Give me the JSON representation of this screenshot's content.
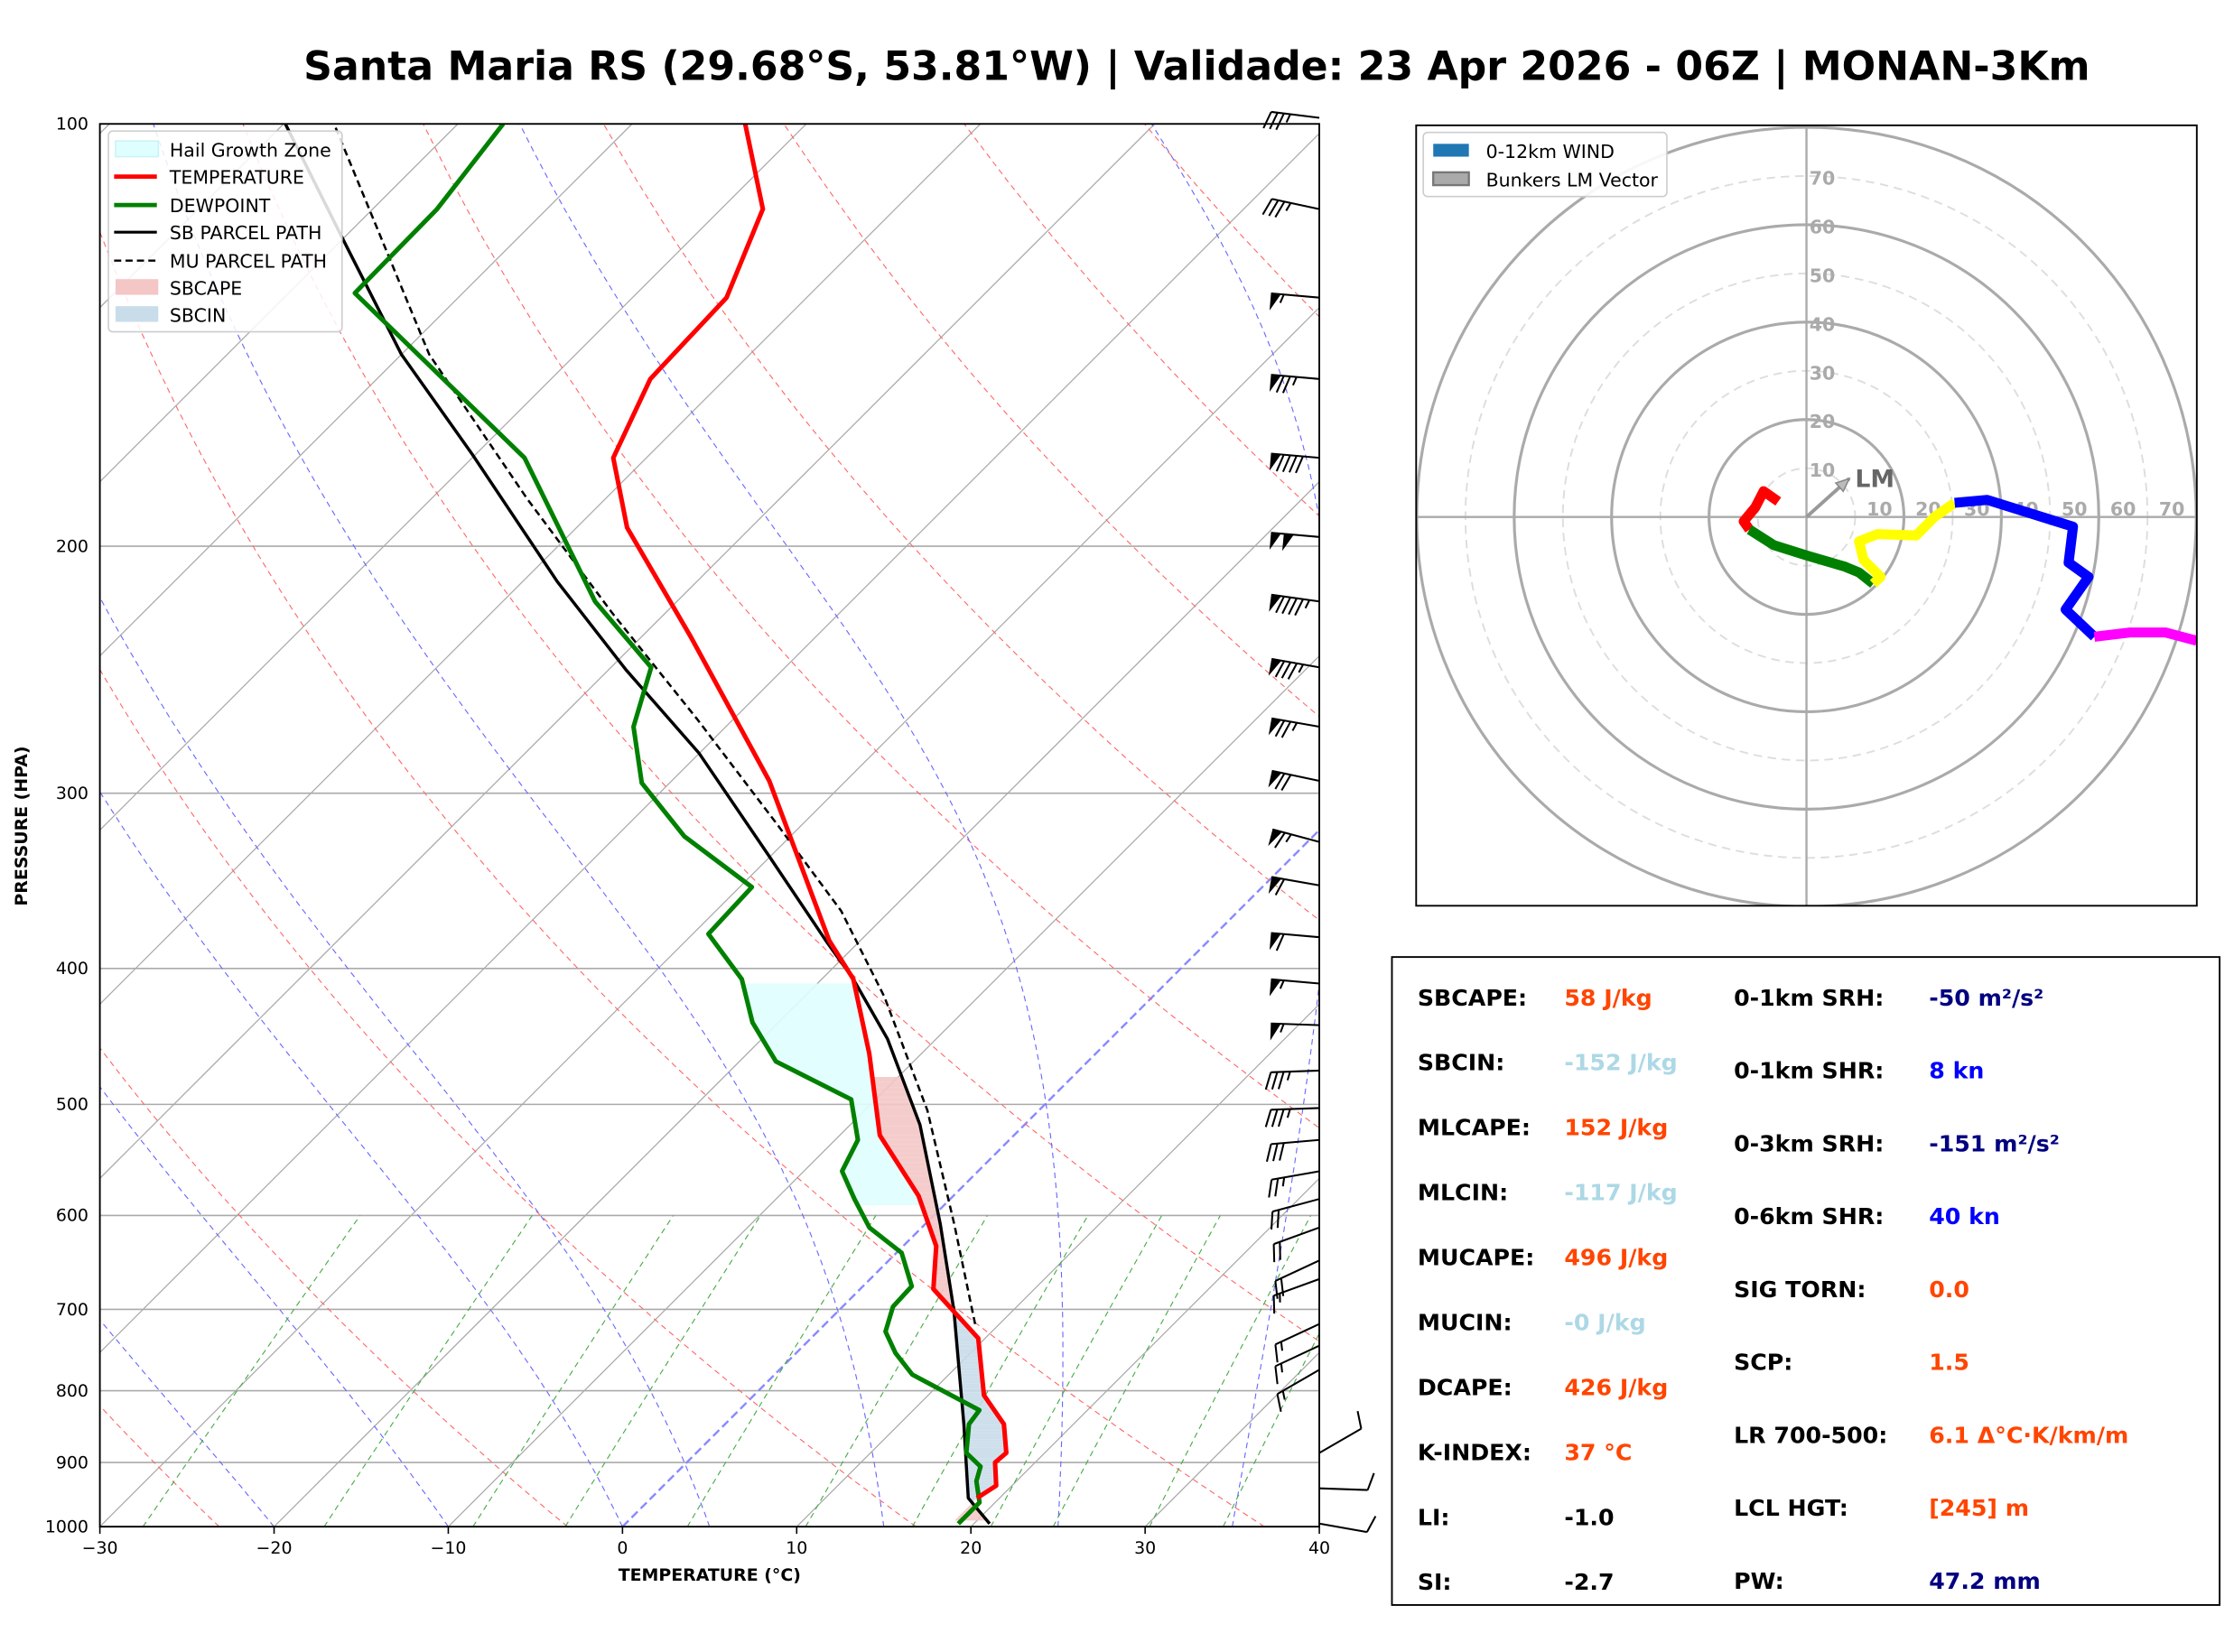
{
  "title": "Santa Maria RS (29.68°S, 53.81°W) | Validade: 23 Apr 2026 - 06Z | MONAN-3Km",
  "chart_data": [
    {
      "type": "line",
      "name": "skew-t",
      "xlabel": "TEMPERATURE (°C)",
      "ylabel": "PRESSURE (HPA)",
      "xlim": [
        -30,
        40
      ],
      "ylim": [
        1000,
        100
      ],
      "x_ticks": [
        "−30",
        "−20",
        "−10",
        "0",
        "10",
        "20",
        "30",
        "40"
      ],
      "x_tick_values": [
        -30,
        -20,
        -10,
        0,
        10,
        20,
        30,
        40
      ],
      "y_ticks": [
        "100",
        "200",
        "300",
        "400",
        "500",
        "600",
        "700",
        "800",
        "900",
        "1000"
      ],
      "y_tick_values": [
        100,
        200,
        300,
        400,
        500,
        600,
        700,
        800,
        900,
        1000
      ],
      "legend": {
        "placement": "top-left",
        "entries": [
          "Hail Growth Zone",
          "TEMPERATURE",
          "DEWPOINT",
          "SB PARCEL PATH",
          "MU PARCEL PATH",
          "SBCAPE",
          "SBCIN"
        ]
      },
      "colors": {
        "temperature": "#ff0000",
        "dewpoint": "#008000",
        "sb_parcel": "#000000",
        "mu_parcel": "#000000",
        "sbcape": "#f4c6c6",
        "sbcin": "#c9dcea",
        "hgz": "#dffeff"
      },
      "temperature": {
        "p": [
          954,
          935,
          900,
          886,
          845,
          806,
          734,
          677,
          631,
          581,
          526,
          460,
          407,
          382,
          294,
          269,
          232,
          194,
          173,
          152,
          133,
          115,
          100
        ],
        "T": [
          18.7,
          19.1,
          17.7,
          17.8,
          16.0,
          13.2,
          9.6,
          4.2,
          1.9,
          -2.0,
          -7.7,
          -13.0,
          -18.2,
          -21.8,
          -34.4,
          -39.2,
          -47.2,
          -57.1,
          -61.9,
          -64.3,
          -64.6,
          -67.6,
          -73.5
        ]
      },
      "dewpoint": {
        "p": [
          995,
          961,
          928,
          906,
          886,
          845,
          826,
          779,
          752,
          726,
          697,
          674,
          638,
          612,
          584,
          558,
          530,
          496,
          466,
          437,
          407,
          378,
          350,
          322,
          295,
          269,
          244,
          219,
          173,
          132,
          115,
          100
        ],
        "T": [
          19.1,
          19.1,
          17.7,
          17.1,
          15.5,
          14.0,
          13.8,
          7.9,
          5.7,
          3.9,
          2.9,
          2.8,
          0.3,
          -3.0,
          -5.5,
          -7.8,
          -8.7,
          -11.4,
          -17.9,
          -21.5,
          -24.6,
          -29.1,
          -29.3,
          -36.1,
          -41.6,
          -45.3,
          -47.7,
          -54.7,
          -67.0,
          -86.2,
          -86.3,
          -87.4
        ]
      },
      "sb_parcel": {
        "p": [
          995,
          954,
          845,
          701,
          609,
          517,
          449,
          407,
          382,
          332,
          281,
          245,
          212,
          172,
          146,
          121,
          100
        ],
        "T": [
          20.9,
          18.2,
          13.7,
          6.6,
          0.9,
          -6.0,
          -12.8,
          -18.2,
          -22.0,
          -30.2,
          -40.0,
          -49.0,
          -58.0,
          -70.2,
          -80.0,
          -89.9,
          -99.9
        ]
      },
      "mu_parcel": {
        "p": [
          717,
          609,
          505,
          419,
          364,
          316,
          266,
          223,
          185,
          146,
          100
        ],
        "T": [
          8.6,
          1.7,
          -6.4,
          -15.4,
          -22.8,
          -31.4,
          -42.0,
          -53.1,
          -64.5,
          -78.4,
          -97.1
        ]
      },
      "hail_growth_zone_hpa": [
        590,
        410
      ],
      "wind_barbs": [
        {
          "p": 99,
          "dir": 277,
          "kt": 35
        },
        {
          "p": 115,
          "dir": 282,
          "kt": 35
        },
        {
          "p": 133,
          "dir": 275,
          "kt": 55
        },
        {
          "p": 152,
          "dir": 275,
          "kt": 75
        },
        {
          "p": 173,
          "dir": 275,
          "kt": 90
        },
        {
          "p": 197,
          "dir": 275,
          "kt": 100
        },
        {
          "p": 219,
          "dir": 278,
          "kt": 95
        },
        {
          "p": 244,
          "dir": 280,
          "kt": 85
        },
        {
          "p": 269,
          "dir": 280,
          "kt": 75
        },
        {
          "p": 294,
          "dir": 282,
          "kt": 70
        },
        {
          "p": 325,
          "dir": 285,
          "kt": 65
        },
        {
          "p": 349,
          "dir": 280,
          "kt": 60
        },
        {
          "p": 380,
          "dir": 275,
          "kt": 60
        },
        {
          "p": 410,
          "dir": 275,
          "kt": 55
        },
        {
          "p": 439,
          "dir": 272,
          "kt": 55
        },
        {
          "p": 473,
          "dir": 268,
          "kt": 35
        },
        {
          "p": 503,
          "dir": 268,
          "kt": 35
        },
        {
          "p": 530,
          "dir": 265,
          "kt": 30
        },
        {
          "p": 558,
          "dir": 260,
          "kt": 25
        },
        {
          "p": 584,
          "dir": 255,
          "kt": 20
        },
        {
          "p": 612,
          "dir": 250,
          "kt": 20
        },
        {
          "p": 646,
          "dir": 245,
          "kt": 20
        },
        {
          "p": 666,
          "dir": 250,
          "kt": 15
        },
        {
          "p": 717,
          "dir": 245,
          "kt": 15
        },
        {
          "p": 743,
          "dir": 245,
          "kt": 15
        },
        {
          "p": 773,
          "dir": 240,
          "kt": 15
        },
        {
          "p": 886,
          "dir": 60,
          "kt": 10
        },
        {
          "p": 939,
          "dir": 92,
          "kt": 10
        },
        {
          "p": 995,
          "dir": 100,
          "kt": 10
        }
      ]
    },
    {
      "type": "line",
      "name": "hodograph",
      "units": "kt",
      "rings": [
        10,
        20,
        30,
        40,
        50,
        60,
        70,
        80
      ],
      "ring_labels": [
        "10",
        "20",
        "30",
        "40",
        "50",
        "60",
        "70"
      ],
      "legend": {
        "placement": "top-left",
        "entries": [
          "0-12km WIND",
          "Bunkers LM Vector"
        ]
      },
      "lm_label": "LM",
      "bunkers_lm": {
        "u": 8.8,
        "v": 7.9
      },
      "segments": [
        {
          "color": "#ff0000",
          "u": [
            -5.8,
            -8.8,
            -10.5,
            -12.9,
            -11.7
          ],
          "v": [
            3.2,
            5.3,
            2.0,
            -0.9,
            -2.6
          ]
        },
        {
          "color": "#008000",
          "u": [
            -11.7,
            -6.7,
            0,
            7.9,
            10.8,
            13.7
          ],
          "v": [
            -2.6,
            -5.8,
            -7.9,
            -10.2,
            -11.4,
            -13.7
          ]
        },
        {
          "color": "#ffff00",
          "u": [
            13.7,
            15.2,
            11.7,
            10.8,
            14.6,
            22.5,
            26.3,
            30.4
          ],
          "v": [
            -13.7,
            -12.3,
            -8.8,
            -5.0,
            -3.5,
            -3.8,
            0,
            2.9
          ]
        },
        {
          "color": "#0000ff",
          "u": [
            30.4,
            37.1,
            54.7,
            53.8,
            57.9,
            53.2,
            59.1
          ],
          "v": [
            2.9,
            3.5,
            -2.0,
            -9.4,
            -12.3,
            -19.0,
            -24.6
          ]
        },
        {
          "color": "#ff00ff",
          "u": [
            59.1,
            66.4,
            73.7,
            80.1
          ],
          "v": [
            -24.6,
            -23.7,
            -23.7,
            -25.4
          ]
        }
      ]
    }
  ],
  "stats": {
    "left": [
      {
        "label": "SBCAPE:",
        "value": "58 J/kg",
        "color": "#ff4500"
      },
      {
        "label": "SBCIN:",
        "value": "-152 J/kg",
        "color": "#add8e6"
      },
      {
        "label": "MLCAPE:",
        "value": "152 J/kg",
        "color": "#ff4500"
      },
      {
        "label": "MLCIN:",
        "value": "-117 J/kg",
        "color": "#add8e6"
      },
      {
        "label": "MUCAPE:",
        "value": "496 J/kg",
        "color": "#ff4500"
      },
      {
        "label": "MUCIN:",
        "value": "-0 J/kg",
        "color": "#add8e6"
      },
      {
        "label": "DCAPE:",
        "value": "426 J/kg",
        "color": "#ff4500"
      },
      {
        "label": "K-INDEX:",
        "value": "37 °C",
        "color": "#ff4500"
      },
      {
        "label": "LI:",
        "value": "-1.0",
        "color": "#000000"
      },
      {
        "label": "SI:",
        "value": "-2.7",
        "color": "#000000"
      }
    ],
    "right": [
      {
        "label": "0-1km SRH:",
        "value": "-50 m²/s²",
        "color": "#000080"
      },
      {
        "label": "0-1km SHR:",
        "value": "8 kn",
        "color": "#0000ff"
      },
      {
        "label": "0-3km SRH:",
        "value": "-151 m²/s²",
        "color": "#000080"
      },
      {
        "label": "0-6km SHR:",
        "value": "40 kn",
        "color": "#0000ff"
      },
      {
        "label": "SIG TORN:",
        "value": "0.0",
        "color": "#ff4500"
      },
      {
        "label": "SCP:",
        "value": "1.5",
        "color": "#ff4500"
      },
      {
        "label": "LR 700-500:",
        "value": "6.1 Δ°C·K/km/m",
        "color": "#ff4500"
      },
      {
        "label": "LCL HGT:",
        "value": "[245] m",
        "color": "#ff4500"
      },
      {
        "label": "PW:",
        "value": "47.2 mm",
        "color": "#000080"
      }
    ]
  }
}
